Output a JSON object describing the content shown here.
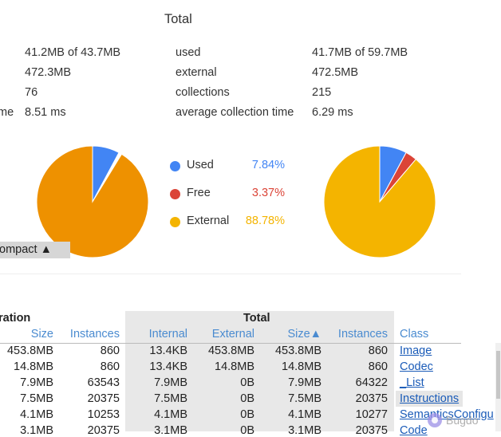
{
  "total_heading": "Total",
  "left_stats": [
    {
      "label": "",
      "value": "41.2MB of 43.7MB"
    },
    {
      "label": "",
      "value": "472.3MB"
    },
    {
      "label": "",
      "value": "76"
    },
    {
      "label": "me",
      "value": "8.51 ms"
    }
  ],
  "right_stats": [
    {
      "label": "used",
      "value": "41.7MB of 59.7MB"
    },
    {
      "label": "external",
      "value": "472.5MB"
    },
    {
      "label": "collections",
      "value": "215"
    },
    {
      "label": "average collection time",
      "value": "6.29 ms"
    }
  ],
  "legend": [
    {
      "label": "Used",
      "pct": "7.84%",
      "color": "#4285f4"
    },
    {
      "label": "Free",
      "pct": "3.37%",
      "color": "#db4437"
    },
    {
      "label": "External",
      "pct": "88.78%",
      "color": "#f4b400"
    }
  ],
  "left_pie": {
    "used": 7.84,
    "free": 0.9,
    "external": 91.26,
    "colors": {
      "used": "#4285f4",
      "free": "#ffffff",
      "external": "#ee9100"
    }
  },
  "right_pie": {
    "used": 7.84,
    "free": 3.37,
    "external": 88.78,
    "colors": {
      "used": "#4285f4",
      "free": "#db4437",
      "external": "#f4b400"
    }
  },
  "compact_button": "ompact ▲",
  "table": {
    "left_group": "ration",
    "total_group": "Total",
    "columns": {
      "size": "Size",
      "instances": "Instances",
      "internal": "Internal",
      "external": "External",
      "total_size": "Size▲",
      "total_instances": "Instances",
      "class": "Class"
    },
    "rows": [
      {
        "size": "453.8MB",
        "instances": "860",
        "internal": "13.4KB",
        "external": "453.8MB",
        "total_size": "453.8MB",
        "total_instances": "860",
        "class": "Image"
      },
      {
        "size": "14.8MB",
        "instances": "860",
        "internal": "13.4KB",
        "external": "14.8MB",
        "total_size": "14.8MB",
        "total_instances": "860",
        "class": "Codec"
      },
      {
        "size": "7.9MB",
        "instances": "63543",
        "internal": "7.9MB",
        "external": "0B",
        "total_size": "7.9MB",
        "total_instances": "64322",
        "class": "_List"
      },
      {
        "size": "7.5MB",
        "instances": "20375",
        "internal": "7.5MB",
        "external": "0B",
        "total_size": "7.5MB",
        "total_instances": "20375",
        "class": "Instructions"
      },
      {
        "size": "4.1MB",
        "instances": "10253",
        "internal": "4.1MB",
        "external": "0B",
        "total_size": "4.1MB",
        "total_instances": "10277",
        "class": "SemanticsConfigu"
      },
      {
        "size": "3.1MB",
        "instances": "20375",
        "internal": "3.1MB",
        "external": "0B",
        "total_size": "3.1MB",
        "total_instances": "20375",
        "class": "Code"
      }
    ]
  }
}
